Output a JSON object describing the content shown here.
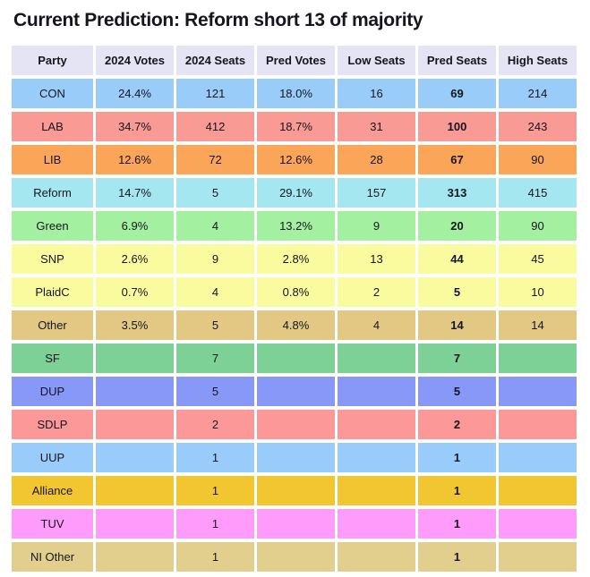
{
  "title": "Current Prediction: Reform short 13 of majority",
  "colors": {
    "background": "#ffffff",
    "header_bg": "#e4e4f4",
    "text": "#15151e"
  },
  "chart_data": {
    "type": "table",
    "title": "Current Prediction: Reform short 13 of majority",
    "columns": [
      "Party",
      "2024 Votes",
      "2024 Seats",
      "Pred Votes",
      "Low Seats",
      "Pred Seats",
      "High Seats"
    ],
    "rows": [
      {
        "cells": [
          "CON",
          "24.4%",
          "121",
          "18.0%",
          "16",
          "69",
          "214"
        ],
        "color": "#99ccf9"
      },
      {
        "cells": [
          "LAB",
          "34.7%",
          "412",
          "18.7%",
          "31",
          "100",
          "243"
        ],
        "color": "#f99a94"
      },
      {
        "cells": [
          "LIB",
          "12.6%",
          "72",
          "12.6%",
          "28",
          "67",
          "90"
        ],
        "color": "#fba558"
      },
      {
        "cells": [
          "Reform",
          "14.7%",
          "5",
          "29.1%",
          "157",
          "313",
          "415"
        ],
        "color": "#a4e7f1"
      },
      {
        "cells": [
          "Green",
          "6.9%",
          "4",
          "13.2%",
          "9",
          "20",
          "90"
        ],
        "color": "#a2f0a0"
      },
      {
        "cells": [
          "SNP",
          "2.6%",
          "9",
          "2.8%",
          "13",
          "44",
          "45"
        ],
        "color": "#fafa9e"
      },
      {
        "cells": [
          "PlaidC",
          "0.7%",
          "4",
          "0.8%",
          "2",
          "5",
          "10"
        ],
        "color": "#fafa9e"
      },
      {
        "cells": [
          "Other",
          "3.5%",
          "5",
          "4.8%",
          "4",
          "14",
          "14"
        ],
        "color": "#e2c883"
      },
      {
        "cells": [
          "SF",
          "",
          "7",
          "",
          "",
          "7",
          ""
        ],
        "color": "#7dd196"
      },
      {
        "cells": [
          "DUP",
          "",
          "5",
          "",
          "",
          "5",
          ""
        ],
        "color": "#8898f8"
      },
      {
        "cells": [
          "SDLP",
          "",
          "2",
          "",
          "",
          "2",
          ""
        ],
        "color": "#fc9898"
      },
      {
        "cells": [
          "UUP",
          "",
          "1",
          "",
          "",
          "1",
          ""
        ],
        "color": "#99ccfb"
      },
      {
        "cells": [
          "Alliance",
          "",
          "1",
          "",
          "",
          "1",
          ""
        ],
        "color": "#f2c630"
      },
      {
        "cells": [
          "TUV",
          "",
          "1",
          "",
          "",
          "1",
          ""
        ],
        "color": "#fe9bfb"
      },
      {
        "cells": [
          "NI Other",
          "",
          "1",
          "",
          "",
          "1",
          ""
        ],
        "color": "#e2cf8e"
      }
    ],
    "bold_column_index": 5,
    "layout": {
      "grid": false,
      "gap_color": "#ffffff"
    }
  }
}
